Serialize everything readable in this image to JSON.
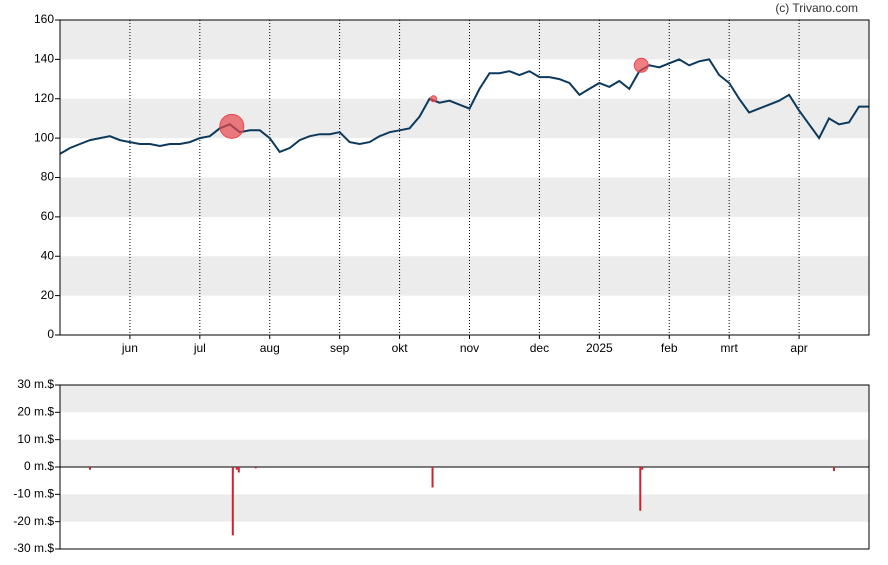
{
  "chart_data": [
    {
      "type": "line",
      "credit": "(c) Trivano.com",
      "categories": [
        null,
        null,
        null,
        null,
        null,
        null,
        null,
        "jun",
        null,
        null,
        null,
        null,
        null,
        null,
        "jul",
        null,
        null,
        null,
        null,
        null,
        null,
        "aug",
        null,
        null,
        null,
        null,
        null,
        null,
        "sep",
        null,
        null,
        null,
        null,
        null,
        "okt",
        null,
        null,
        null,
        null,
        null,
        null,
        "nov",
        null,
        null,
        null,
        null,
        null,
        null,
        "dec",
        null,
        null,
        null,
        null,
        null,
        "2025",
        null,
        null,
        null,
        null,
        null,
        null,
        "feb",
        null,
        null,
        null,
        null,
        null,
        "mrt",
        null,
        null,
        null,
        null,
        null,
        null,
        "apr",
        null,
        null,
        null,
        null,
        null,
        null,
        null
      ],
      "series": [
        {
          "color": "#0d3a5c",
          "values": [
            92,
            95,
            97,
            99,
            100,
            101,
            99,
            98,
            97,
            97,
            96,
            97,
            97,
            98,
            100,
            101,
            105,
            107,
            103,
            104,
            104,
            100,
            93,
            95,
            99,
            101,
            102,
            102,
            103,
            98,
            97,
            98,
            101,
            103,
            104,
            105,
            111,
            120,
            118,
            119,
            117,
            115,
            125,
            133,
            133,
            134,
            132,
            134,
            131,
            131,
            130,
            128,
            122,
            125,
            128,
            126,
            129,
            125,
            134,
            137,
            136,
            138,
            140,
            137,
            139,
            140,
            132,
            128,
            120,
            113,
            115,
            117,
            119,
            122,
            114,
            107,
            100,
            110,
            107,
            108,
            116,
            116
          ]
        }
      ],
      "events": {
        "color": "#e8474f",
        "x": [
          17.2,
          37.4,
          58.2
        ],
        "values": [
          106,
          120,
          137
        ],
        "sizes": [
          12,
          3,
          7
        ]
      },
      "ylim": [
        0,
        160
      ],
      "yticks": [
        0,
        20,
        40,
        60,
        80,
        100,
        120,
        140,
        160
      ],
      "grid": true
    },
    {
      "type": "bar",
      "x": [
        3,
        17.3,
        17.7,
        17.9,
        19.6,
        37.3,
        58.1,
        58.3,
        77.5
      ],
      "values": [
        -1,
        -25,
        -1,
        -2,
        -0.5,
        -7.5,
        -16,
        -1,
        -1.5
      ],
      "color": "#d0202e",
      "ylim": [
        -30,
        30
      ],
      "yticks": [
        {
          "value": -30,
          "label": "-30 m.$"
        },
        {
          "value": -20,
          "label": "-20 m.$"
        },
        {
          "value": -10,
          "label": "-10 m.$"
        },
        {
          "value": 0,
          "label": "0 m.$"
        },
        {
          "value": 10,
          "label": "10 m.$"
        },
        {
          "value": 20,
          "label": "20 m.$"
        },
        {
          "value": 30,
          "label": "30 m.$"
        }
      ],
      "grid": true
    }
  ]
}
